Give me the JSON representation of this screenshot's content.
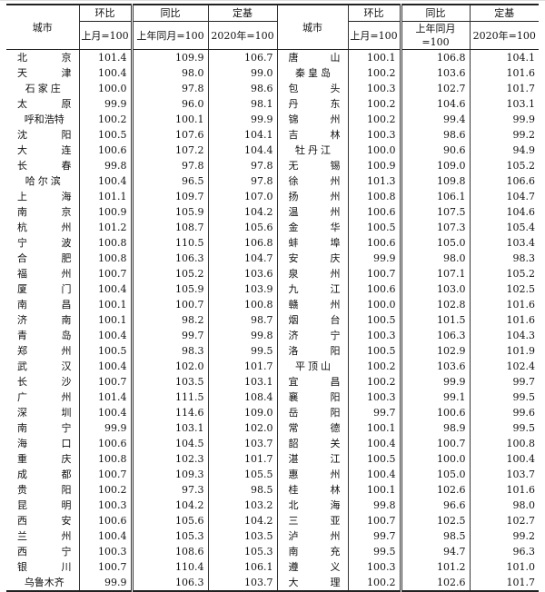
{
  "header": {
    "city": "城市",
    "mom": "环比",
    "yoy": "同比",
    "base": "定基",
    "mom_sub": "上月=100",
    "yoy_sub": "上年同月=100",
    "base_sub": "2020年=100"
  },
  "left": [
    {
      "city": "北京",
      "mom": "101.4",
      "yoy": "109.9",
      "base": "106.7"
    },
    {
      "city": "天津",
      "mom": "100.4",
      "yoy": "98.0",
      "base": "99.0"
    },
    {
      "city": "石家庄",
      "mom": "100.0",
      "yoy": "97.8",
      "base": "98.6"
    },
    {
      "city": "太原",
      "mom": "99.9",
      "yoy": "96.0",
      "base": "98.1"
    },
    {
      "city": "呼和浩特",
      "mom": "100.2",
      "yoy": "100.1",
      "base": "99.9"
    },
    {
      "city": "沈阳",
      "mom": "100.5",
      "yoy": "107.6",
      "base": "104.1"
    },
    {
      "city": "大连",
      "mom": "100.6",
      "yoy": "107.2",
      "base": "104.4"
    },
    {
      "city": "长春",
      "mom": "99.8",
      "yoy": "97.8",
      "base": "97.8"
    },
    {
      "city": "哈尔滨",
      "mom": "100.4",
      "yoy": "96.5",
      "base": "97.8"
    },
    {
      "city": "上海",
      "mom": "101.1",
      "yoy": "109.7",
      "base": "107.0"
    },
    {
      "city": "南京",
      "mom": "100.9",
      "yoy": "105.9",
      "base": "104.2"
    },
    {
      "city": "杭州",
      "mom": "101.2",
      "yoy": "108.7",
      "base": "105.6"
    },
    {
      "city": "宁波",
      "mom": "100.8",
      "yoy": "110.5",
      "base": "106.8"
    },
    {
      "city": "合肥",
      "mom": "100.8",
      "yoy": "106.3",
      "base": "104.7"
    },
    {
      "city": "福州",
      "mom": "100.7",
      "yoy": "105.2",
      "base": "103.6"
    },
    {
      "city": "厦门",
      "mom": "100.4",
      "yoy": "105.9",
      "base": "103.9"
    },
    {
      "city": "南昌",
      "mom": "100.1",
      "yoy": "100.7",
      "base": "100.8"
    },
    {
      "city": "济南",
      "mom": "100.1",
      "yoy": "98.2",
      "base": "98.7"
    },
    {
      "city": "青岛",
      "mom": "100.4",
      "yoy": "99.7",
      "base": "99.8"
    },
    {
      "city": "郑州",
      "mom": "100.5",
      "yoy": "98.3",
      "base": "99.5"
    },
    {
      "city": "武汉",
      "mom": "100.4",
      "yoy": "102.0",
      "base": "101.7"
    },
    {
      "city": "长沙",
      "mom": "100.7",
      "yoy": "103.5",
      "base": "103.1"
    },
    {
      "city": "广州",
      "mom": "101.4",
      "yoy": "111.5",
      "base": "108.4"
    },
    {
      "city": "深圳",
      "mom": "100.4",
      "yoy": "114.6",
      "base": "109.0"
    },
    {
      "city": "南宁",
      "mom": "99.9",
      "yoy": "103.1",
      "base": "102.0"
    },
    {
      "city": "海口",
      "mom": "100.6",
      "yoy": "104.5",
      "base": "103.7"
    },
    {
      "city": "重庆",
      "mom": "100.8",
      "yoy": "102.3",
      "base": "101.7"
    },
    {
      "city": "成都",
      "mom": "100.7",
      "yoy": "109.3",
      "base": "105.5"
    },
    {
      "city": "贵阳",
      "mom": "100.2",
      "yoy": "97.3",
      "base": "98.5"
    },
    {
      "city": "昆明",
      "mom": "100.3",
      "yoy": "104.2",
      "base": "103.2"
    },
    {
      "city": "西安",
      "mom": "100.6",
      "yoy": "105.6",
      "base": "104.2"
    },
    {
      "city": "兰州",
      "mom": "100.4",
      "yoy": "105.3",
      "base": "103.5"
    },
    {
      "city": "西宁",
      "mom": "100.3",
      "yoy": "108.6",
      "base": "105.3"
    },
    {
      "city": "银川",
      "mom": "100.7",
      "yoy": "110.4",
      "base": "106.1"
    },
    {
      "city": "乌鲁木齐",
      "mom": "99.9",
      "yoy": "106.3",
      "base": "103.7"
    }
  ],
  "right": [
    {
      "city": "唐山",
      "mom": "100.1",
      "yoy": "106.8",
      "base": "104.1"
    },
    {
      "city": "秦皇岛",
      "mom": "100.2",
      "yoy": "103.6",
      "base": "101.6"
    },
    {
      "city": "包头",
      "mom": "100.3",
      "yoy": "102.7",
      "base": "101.7"
    },
    {
      "city": "丹东",
      "mom": "100.2",
      "yoy": "104.6",
      "base": "103.1"
    },
    {
      "city": "锦州",
      "mom": "100.2",
      "yoy": "99.4",
      "base": "99.9"
    },
    {
      "city": "吉林",
      "mom": "100.3",
      "yoy": "98.6",
      "base": "99.2"
    },
    {
      "city": "牡丹江",
      "mom": "100.0",
      "yoy": "90.6",
      "base": "94.9"
    },
    {
      "city": "无锡",
      "mom": "100.9",
      "yoy": "109.0",
      "base": "105.2"
    },
    {
      "city": "徐州",
      "mom": "101.3",
      "yoy": "109.8",
      "base": "106.6"
    },
    {
      "city": "扬州",
      "mom": "100.8",
      "yoy": "106.1",
      "base": "104.7"
    },
    {
      "city": "温州",
      "mom": "100.6",
      "yoy": "107.5",
      "base": "104.6"
    },
    {
      "city": "金华",
      "mom": "100.5",
      "yoy": "107.3",
      "base": "105.4"
    },
    {
      "city": "蚌埠",
      "mom": "100.6",
      "yoy": "105.0",
      "base": "103.4"
    },
    {
      "city": "安庆",
      "mom": "99.9",
      "yoy": "98.0",
      "base": "98.3"
    },
    {
      "city": "泉州",
      "mom": "100.7",
      "yoy": "107.1",
      "base": "105.2"
    },
    {
      "city": "九江",
      "mom": "100.6",
      "yoy": "103.0",
      "base": "102.5"
    },
    {
      "city": "赣州",
      "mom": "100.0",
      "yoy": "102.8",
      "base": "101.6"
    },
    {
      "city": "烟台",
      "mom": "100.5",
      "yoy": "101.5",
      "base": "101.6"
    },
    {
      "city": "济宁",
      "mom": "100.3",
      "yoy": "106.3",
      "base": "104.3"
    },
    {
      "city": "洛阳",
      "mom": "100.5",
      "yoy": "102.9",
      "base": "101.9"
    },
    {
      "city": "平顶山",
      "mom": "100.2",
      "yoy": "103.6",
      "base": "102.4"
    },
    {
      "city": "宜昌",
      "mom": "100.2",
      "yoy": "99.9",
      "base": "99.7"
    },
    {
      "city": "襄阳",
      "mom": "100.3",
      "yoy": "99.1",
      "base": "99.5"
    },
    {
      "city": "岳阳",
      "mom": "99.7",
      "yoy": "100.6",
      "base": "99.6"
    },
    {
      "city": "常德",
      "mom": "100.1",
      "yoy": "98.9",
      "base": "99.5"
    },
    {
      "city": "韶关",
      "mom": "100.4",
      "yoy": "100.7",
      "base": "100.8"
    },
    {
      "city": "湛江",
      "mom": "100.5",
      "yoy": "100.0",
      "base": "100.4"
    },
    {
      "city": "惠州",
      "mom": "100.4",
      "yoy": "105.0",
      "base": "103.7"
    },
    {
      "city": "桂林",
      "mom": "100.1",
      "yoy": "102.6",
      "base": "101.6"
    },
    {
      "city": "北海",
      "mom": "99.8",
      "yoy": "96.6",
      "base": "98.0"
    },
    {
      "city": "三亚",
      "mom": "100.7",
      "yoy": "102.5",
      "base": "102.7"
    },
    {
      "city": "泸州",
      "mom": "99.7",
      "yoy": "98.5",
      "base": "99.2"
    },
    {
      "city": "南充",
      "mom": "99.5",
      "yoy": "94.7",
      "base": "96.3"
    },
    {
      "city": "遵义",
      "mom": "100.3",
      "yoy": "101.2",
      "base": "101.0"
    },
    {
      "city": "大理",
      "mom": "100.2",
      "yoy": "102.6",
      "base": "101.7"
    }
  ]
}
